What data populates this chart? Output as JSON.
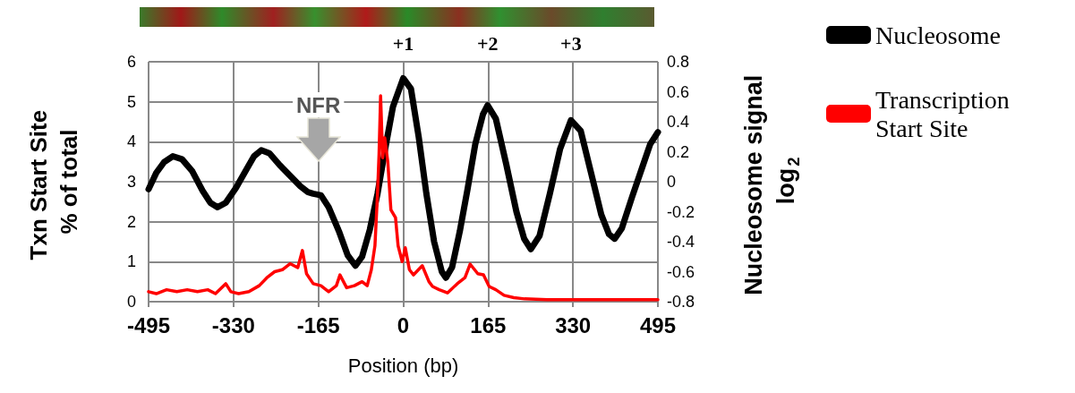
{
  "chart_data": {
    "type": "line",
    "xlabel": "Position (bp)",
    "ylabel": "Txn Start Site % of total",
    "y2label": "Nucleosome signal log$_{2}$",
    "xlim": [
      -495,
      495
    ],
    "xticks": [
      -495,
      -330,
      -165,
      0,
      165,
      330,
      495
    ],
    "ylim": [
      0,
      6
    ],
    "yticks": [
      0,
      1,
      2,
      3,
      4,
      5,
      6
    ],
    "y2lim": [
      -0.8,
      0.8
    ],
    "y2ticks": [
      -0.8,
      -0.6,
      -0.4,
      -0.2,
      0,
      0.2,
      0.4,
      0.6,
      0.8
    ],
    "grid": true,
    "legend": "right",
    "marker": "none",
    "line_style": "solid",
    "annotations": [
      "NFR",
      "+1",
      "+2",
      "+3"
    ],
    "series": [
      {
        "name": "Nucleosome",
        "color": "#000000",
        "axis": "y2",
        "x": [
          -495,
          -480,
          -465,
          -448,
          -430,
          -410,
          -390,
          -375,
          -361,
          -345,
          -325,
          -305,
          -290,
          -276,
          -260,
          -240,
          -220,
          -200,
          -185,
          -175,
          -160,
          -145,
          -125,
          -108,
          -93,
          -80,
          -65,
          -50,
          -35,
          -20,
          0,
          15,
          30,
          45,
          60,
          75,
          83,
          95,
          110,
          125,
          140,
          155,
          164,
          180,
          200,
          220,
          235,
          248,
          265,
          285,
          305,
          326,
          345,
          365,
          385,
          400,
          411,
          425,
          445,
          465,
          480,
          495
        ],
        "values": [
          -0.05,
          0.06,
          0.13,
          0.17,
          0.15,
          0.07,
          -0.06,
          -0.14,
          -0.17,
          -0.14,
          -0.04,
          0.08,
          0.17,
          0.21,
          0.19,
          0.11,
          0.04,
          -0.03,
          -0.07,
          -0.08,
          -0.09,
          -0.17,
          -0.33,
          -0.49,
          -0.56,
          -0.5,
          -0.32,
          -0.08,
          0.22,
          0.5,
          0.69,
          0.62,
          0.3,
          -0.08,
          -0.4,
          -0.6,
          -0.64,
          -0.57,
          -0.33,
          -0.05,
          0.25,
          0.45,
          0.51,
          0.42,
          0.12,
          -0.2,
          -0.38,
          -0.45,
          -0.36,
          -0.08,
          0.22,
          0.41,
          0.34,
          0.06,
          -0.22,
          -0.35,
          -0.38,
          -0.31,
          -0.1,
          0.1,
          0.25,
          0.33
        ]
      },
      {
        "name": "Transcription Start Site",
        "color": "#ff0000",
        "x": [
          -495,
          -480,
          -460,
          -440,
          -420,
          -400,
          -380,
          -365,
          -345,
          -335,
          -320,
          -300,
          -280,
          -265,
          -250,
          -235,
          -220,
          -205,
          -196,
          -188,
          -175,
          -160,
          -145,
          -130,
          -123,
          -110,
          -95,
          -80,
          -70,
          -62,
          -55,
          -50,
          -47,
          -44,
          -40,
          -36,
          -30,
          -24,
          -15,
          -10,
          -2,
          4,
          12,
          20,
          37,
          50,
          57,
          70,
          86,
          105,
          120,
          130,
          145,
          156,
          167,
          180,
          196,
          215,
          236,
          280,
          330,
          400,
          450,
          495
        ],
        "values": [
          0.25,
          0.2,
          0.3,
          0.25,
          0.3,
          0.25,
          0.3,
          0.2,
          0.45,
          0.25,
          0.2,
          0.25,
          0.4,
          0.6,
          0.75,
          0.8,
          0.95,
          0.85,
          1.28,
          0.7,
          0.45,
          0.4,
          0.25,
          0.4,
          0.67,
          0.35,
          0.4,
          0.5,
          0.4,
          0.8,
          1.4,
          2.7,
          3.7,
          5.15,
          3.6,
          4.1,
          3.5,
          2.3,
          2.1,
          1.4,
          1.0,
          1.35,
          0.8,
          0.67,
          0.9,
          0.5,
          0.38,
          0.3,
          0.22,
          0.45,
          0.6,
          0.94,
          0.7,
          0.67,
          0.38,
          0.3,
          0.16,
          0.1,
          0.07,
          0.05,
          0.05,
          0.05,
          0.05,
          0.05
        ]
      }
    ]
  }
}
